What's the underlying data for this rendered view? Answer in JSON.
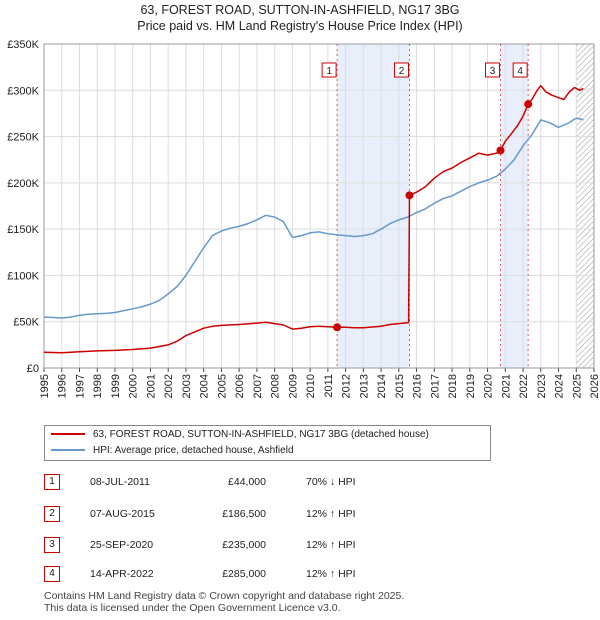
{
  "header": {
    "title_line1": "63, FOREST ROAD, SUTTON-IN-ASHFIELD, NG17 3BG",
    "title_line2": "Price paid vs. HM Land Registry's House Price Index (HPI)"
  },
  "colors": {
    "price_line": "#cc0000",
    "hpi_line": "#6699cc",
    "shade": "#e8eefa",
    "grid": "#dddddd",
    "marker_border": "#cc0000"
  },
  "chart_data": {
    "type": "line",
    "title": "Price paid vs. HM Land Registry's House Price Index (HPI)",
    "xlabel": "",
    "ylabel": "",
    "xlim": [
      1995,
      2026
    ],
    "ylim": [
      0,
      350000
    ],
    "grid": true,
    "y_ticks": [
      {
        "value": 0,
        "label": "£0"
      },
      {
        "value": 50000,
        "label": "£50K"
      },
      {
        "value": 100000,
        "label": "£100K"
      },
      {
        "value": 150000,
        "label": "£150K"
      },
      {
        "value": 200000,
        "label": "£200K"
      },
      {
        "value": 250000,
        "label": "£250K"
      },
      {
        "value": 300000,
        "label": "£300K"
      },
      {
        "value": 350000,
        "label": "£350K"
      }
    ],
    "x_ticks": [
      "1995",
      "1996",
      "1997",
      "1998",
      "1999",
      "2000",
      "2001",
      "2002",
      "2003",
      "2004",
      "2005",
      "2006",
      "2007",
      "2008",
      "2009",
      "2010",
      "2011",
      "2012",
      "2013",
      "2014",
      "2015",
      "2016",
      "2017",
      "2018",
      "2019",
      "2020",
      "2021",
      "2022",
      "2023",
      "2024",
      "2025",
      "2026"
    ],
    "shaded_ranges": [
      [
        2011.52,
        2015.6
      ],
      [
        2020.73,
        2022.29
      ]
    ],
    "hatched_from": 2025.0,
    "series": [
      {
        "name": "63, FOREST ROAD, SUTTON-IN-ASHFIELD, NG17 3BG (detached house)",
        "color": "#cc0000",
        "points": [
          [
            1995.0,
            17000
          ],
          [
            1996.0,
            16500
          ],
          [
            1997.0,
            17500
          ],
          [
            1998.0,
            18500
          ],
          [
            1999.0,
            19000
          ],
          [
            2000.0,
            20000
          ],
          [
            2001.0,
            21500
          ],
          [
            2002.0,
            25000
          ],
          [
            2002.5,
            29000
          ],
          [
            2003.0,
            35000
          ],
          [
            2003.5,
            39000
          ],
          [
            2004.0,
            43000
          ],
          [
            2004.5,
            45000
          ],
          [
            2005.0,
            46000
          ],
          [
            2006.0,
            47000
          ],
          [
            2007.0,
            48500
          ],
          [
            2007.5,
            49500
          ],
          [
            2008.0,
            48000
          ],
          [
            2008.5,
            46500
          ],
          [
            2009.0,
            42000
          ],
          [
            2009.5,
            43000
          ],
          [
            2010.0,
            44500
          ],
          [
            2010.5,
            45000
          ],
          [
            2011.0,
            44500
          ],
          [
            2011.52,
            44000
          ],
          [
            2012.0,
            44000
          ],
          [
            2012.5,
            43500
          ],
          [
            2013.0,
            43500
          ],
          [
            2014.0,
            45000
          ],
          [
            2014.5,
            47000
          ],
          [
            2015.0,
            48000
          ],
          [
            2015.55,
            49000
          ],
          [
            2015.6,
            186500
          ],
          [
            2016.0,
            190000
          ],
          [
            2016.5,
            196000
          ],
          [
            2017.0,
            205000
          ],
          [
            2017.5,
            212000
          ],
          [
            2018.0,
            216000
          ],
          [
            2018.5,
            222000
          ],
          [
            2019.0,
            227000
          ],
          [
            2019.5,
            232000
          ],
          [
            2020.0,
            230000
          ],
          [
            2020.5,
            232000
          ],
          [
            2020.73,
            235000
          ],
          [
            2021.0,
            245000
          ],
          [
            2021.3,
            252000
          ],
          [
            2021.7,
            262000
          ],
          [
            2022.0,
            272000
          ],
          [
            2022.29,
            285000
          ],
          [
            2022.5,
            290000
          ],
          [
            2022.8,
            300000
          ],
          [
            2023.0,
            305000
          ],
          [
            2023.3,
            298000
          ],
          [
            2023.6,
            295000
          ],
          [
            2024.0,
            292000
          ],
          [
            2024.3,
            290000
          ],
          [
            2024.6,
            298000
          ],
          [
            2024.9,
            303000
          ],
          [
            2025.2,
            300000
          ],
          [
            2025.4,
            302000
          ]
        ]
      },
      {
        "name": "HPI: Average price, detached house, Ashfield",
        "color": "#6699cc",
        "points": [
          [
            1995.0,
            55000
          ],
          [
            1995.5,
            54500
          ],
          [
            1996.0,
            54000
          ],
          [
            1996.5,
            55000
          ],
          [
            1997.0,
            57000
          ],
          [
            1997.5,
            58000
          ],
          [
            1998.0,
            58500
          ],
          [
            1998.5,
            59000
          ],
          [
            1999.0,
            60000
          ],
          [
            1999.5,
            62000
          ],
          [
            2000.0,
            64000
          ],
          [
            2000.5,
            66000
          ],
          [
            2001.0,
            69000
          ],
          [
            2001.5,
            73000
          ],
          [
            2002.0,
            80000
          ],
          [
            2002.5,
            88000
          ],
          [
            2003.0,
            100000
          ],
          [
            2003.5,
            115000
          ],
          [
            2004.0,
            130000
          ],
          [
            2004.5,
            143000
          ],
          [
            2005.0,
            148000
          ],
          [
            2005.5,
            151000
          ],
          [
            2006.0,
            153000
          ],
          [
            2006.5,
            156000
          ],
          [
            2007.0,
            160000
          ],
          [
            2007.5,
            165000
          ],
          [
            2008.0,
            163000
          ],
          [
            2008.5,
            158000
          ],
          [
            2009.0,
            141000
          ],
          [
            2009.5,
            143000
          ],
          [
            2010.0,
            146000
          ],
          [
            2010.5,
            147000
          ],
          [
            2011.0,
            145000
          ],
          [
            2011.5,
            144000
          ],
          [
            2012.0,
            143000
          ],
          [
            2012.5,
            142000
          ],
          [
            2013.0,
            143000
          ],
          [
            2013.5,
            145000
          ],
          [
            2014.0,
            150000
          ],
          [
            2014.5,
            156000
          ],
          [
            2015.0,
            160000
          ],
          [
            2015.5,
            163000
          ],
          [
            2016.0,
            168000
          ],
          [
            2016.5,
            172000
          ],
          [
            2017.0,
            178000
          ],
          [
            2017.5,
            183000
          ],
          [
            2018.0,
            186000
          ],
          [
            2018.5,
            191000
          ],
          [
            2019.0,
            196000
          ],
          [
            2019.5,
            200000
          ],
          [
            2020.0,
            203000
          ],
          [
            2020.5,
            207000
          ],
          [
            2021.0,
            215000
          ],
          [
            2021.5,
            225000
          ],
          [
            2022.0,
            240000
          ],
          [
            2022.5,
            252000
          ],
          [
            2023.0,
            268000
          ],
          [
            2023.5,
            265000
          ],
          [
            2024.0,
            260000
          ],
          [
            2024.5,
            264000
          ],
          [
            2025.0,
            270000
          ],
          [
            2025.4,
            268000
          ]
        ]
      }
    ],
    "markers": [
      {
        "id": "1",
        "x": 2011.52,
        "y": 44000
      },
      {
        "id": "2",
        "x": 2015.6,
        "y": 186500
      },
      {
        "id": "3",
        "x": 2020.73,
        "y": 235000
      },
      {
        "id": "4",
        "x": 2022.29,
        "y": 285000
      }
    ]
  },
  "legend": {
    "price_label": "63, FOREST ROAD, SUTTON-IN-ASHFIELD, NG17 3BG (detached house)",
    "hpi_label": "HPI: Average price, detached house, Ashfield"
  },
  "transactions": [
    {
      "num": "1",
      "date": "08-JUL-2011",
      "price": "£44,000",
      "hpi": "70% ↓ HPI"
    },
    {
      "num": "2",
      "date": "07-AUG-2015",
      "price": "£186,500",
      "hpi": "12% ↑ HPI"
    },
    {
      "num": "3",
      "date": "25-SEP-2020",
      "price": "£235,000",
      "hpi": "12% ↑ HPI"
    },
    {
      "num": "4",
      "date": "14-APR-2022",
      "price": "£285,000",
      "hpi": "12% ↑ HPI"
    }
  ],
  "footer": {
    "line1": "Contains HM Land Registry data © Crown copyright and database right 2025.",
    "line2": "This data is licensed under the Open Government Licence v3.0."
  }
}
